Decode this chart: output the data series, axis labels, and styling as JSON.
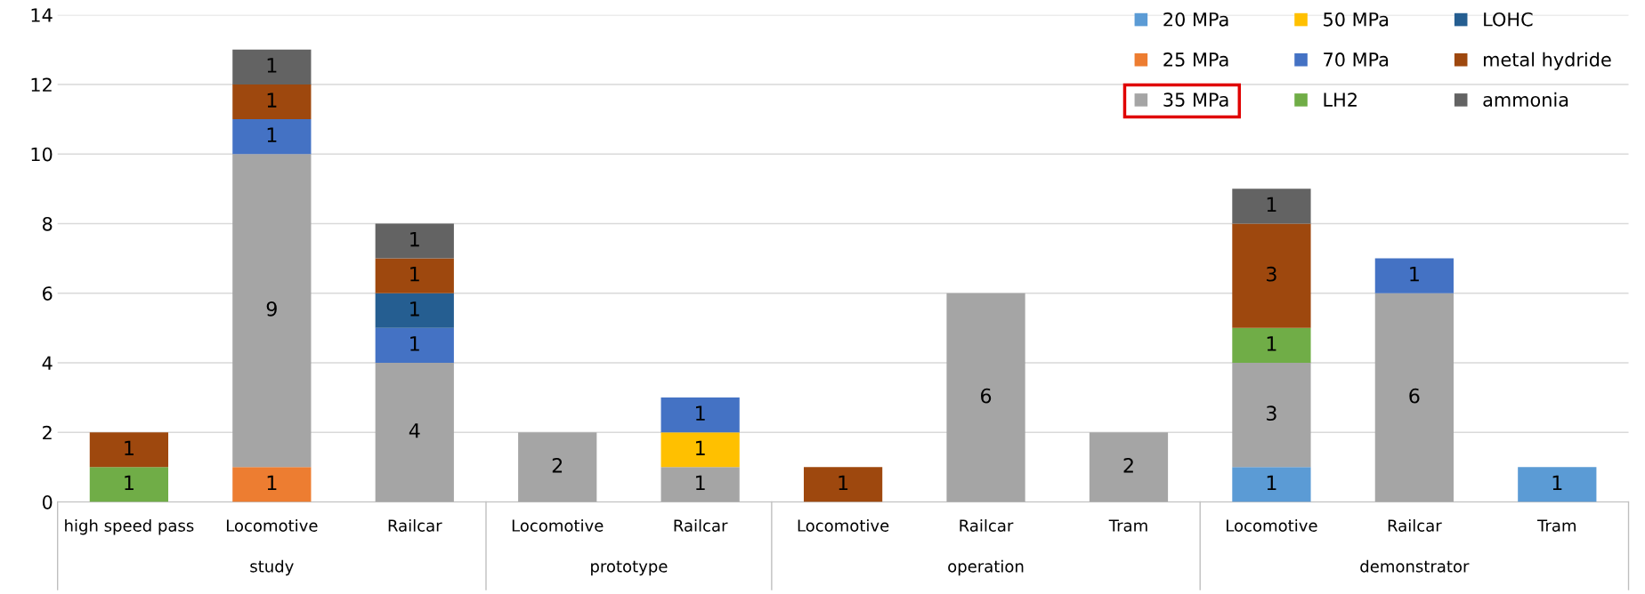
{
  "chart_data": {
    "type": "bar",
    "stacked": true,
    "categories": [
      "high speed pass",
      "Locomotive",
      "Railcar",
      "Locomotive",
      "Railcar",
      "Locomotive",
      "Railcar",
      "Tram",
      "Locomotive",
      "Railcar",
      "Tram"
    ],
    "annotations": [
      "study",
      "prototype",
      "operation",
      "demonstrator"
    ],
    "series": [
      {
        "name": "20 MPa",
        "color": "#5b9bd5",
        "values": [
          null,
          null,
          null,
          null,
          null,
          null,
          null,
          null,
          1,
          null,
          1
        ]
      },
      {
        "name": "25 MPa",
        "color": "#ed7d31",
        "values": [
          null,
          1,
          null,
          null,
          null,
          null,
          null,
          null,
          null,
          null,
          null
        ]
      },
      {
        "name": "35 MPa",
        "color": "#a5a5a5",
        "values": [
          null,
          9,
          4,
          2,
          1,
          null,
          6,
          2,
          3,
          6,
          null
        ]
      },
      {
        "name": "50 MPa",
        "color": "#ffc000",
        "values": [
          null,
          null,
          null,
          null,
          1,
          null,
          null,
          null,
          null,
          null,
          null
        ]
      },
      {
        "name": "70 MPa",
        "color": "#4472c4",
        "values": [
          null,
          1,
          1,
          null,
          1,
          null,
          null,
          null,
          null,
          1,
          null
        ]
      },
      {
        "name": "LH2",
        "color": "#70ad47",
        "values": [
          1,
          null,
          null,
          null,
          null,
          null,
          null,
          null,
          1,
          null,
          null
        ]
      },
      {
        "name": "LOHC",
        "color": "#255e91",
        "values": [
          null,
          null,
          1,
          null,
          null,
          null,
          null,
          null,
          null,
          null,
          null
        ]
      },
      {
        "name": "metal hydride",
        "color": "#9e480e",
        "values": [
          1,
          1,
          1,
          null,
          null,
          1,
          null,
          null,
          3,
          null,
          null
        ]
      },
      {
        "name": "ammonia",
        "color": "#636363",
        "values": [
          null,
          1,
          1,
          null,
          null,
          null,
          null,
          null,
          1,
          null,
          null
        ]
      }
    ],
    "ylim": [
      0,
      14
    ],
    "yticks": [
      0,
      2,
      4,
      6,
      8,
      10,
      12,
      14
    ],
    "grid": "y",
    "legend": "top right",
    "data_labels": true
  }
}
